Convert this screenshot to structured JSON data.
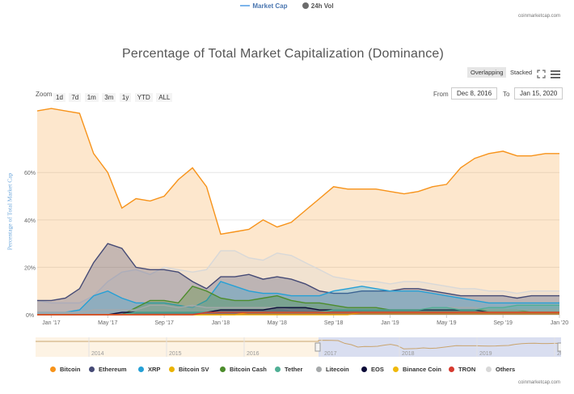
{
  "top_legend": {
    "market_cap": "Market Cap",
    "vol_24h": "24h Vol",
    "market_cap_color": "#7cb5ec",
    "vol_color": "#6b6b6b"
  },
  "credit": "coinmarketcap.com",
  "title": "Percentage of Total Market Capitalization (Dominance)",
  "modes": {
    "overlapping": "Overlapping",
    "stacked": "Stacked"
  },
  "icons": {
    "fullscreen": "fullscreen-icon",
    "menu": "menu-icon"
  },
  "zoom": {
    "label": "Zoom",
    "options": [
      "1d",
      "7d",
      "1m",
      "3m",
      "1y",
      "YTD",
      "ALL"
    ]
  },
  "range": {
    "from_label": "From",
    "from_value": "Dec 8, 2016",
    "to_label": "To",
    "to_value": "Jan 15, 2020"
  },
  "navigator": {
    "years": [
      "2014",
      "2015",
      "2016",
      "2017",
      "2018",
      "2019",
      "20"
    ]
  },
  "chart_data": {
    "type": "area",
    "ylabel": "Percentage of Total Market Cap",
    "x_ticks": [
      "Jan '17",
      "May '17",
      "Sep '17",
      "Jan '18",
      "May '18",
      "Sep '18",
      "Jan '19",
      "May '19",
      "Sep '19",
      "Jan '20"
    ],
    "y_ticks": [
      "0%",
      "20%",
      "40%",
      "60%"
    ],
    "ylim": [
      0,
      85
    ],
    "x": [
      "Dec 2016",
      "Jan 2017",
      "Feb 2017",
      "Mar 2017",
      "Apr 2017",
      "May 2017",
      "Jun 2017",
      "Jul 2017",
      "Aug 2017",
      "Sep 2017",
      "Oct 2017",
      "Nov 2017",
      "Dec 2017",
      "Jan 2018",
      "Feb 2018",
      "Mar 2018",
      "Apr 2018",
      "May 2018",
      "Jun 2018",
      "Jul 2018",
      "Aug 2018",
      "Sep 2018",
      "Oct 2018",
      "Nov 2018",
      "Dec 2018",
      "Jan 2019",
      "Feb 2019",
      "Mar 2019",
      "Apr 2019",
      "May 2019",
      "Jun 2019",
      "Jul 2019",
      "Aug 2019",
      "Sep 2019",
      "Oct 2019",
      "Nov 2019",
      "Dec 2019",
      "Jan 2020"
    ],
    "series": [
      {
        "name": "Bitcoin",
        "color": "#f7931a",
        "values": [
          86,
          87,
          86,
          85,
          68,
          60,
          45,
          49,
          48,
          50,
          57,
          62,
          54,
          34,
          35,
          36,
          40,
          37,
          39,
          44,
          49,
          54,
          53,
          53,
          53,
          52,
          51,
          52,
          54,
          55,
          62,
          66,
          68,
          69,
          67,
          67,
          68,
          68
        ]
      },
      {
        "name": "Ethereum",
        "color": "#454a75",
        "values": [
          6,
          6,
          7,
          11,
          22,
          30,
          28,
          20,
          19,
          19,
          18,
          14,
          11,
          16,
          16,
          17,
          15,
          16,
          15,
          13,
          10,
          9,
          9,
          10,
          10,
          10,
          11,
          11,
          10,
          9,
          8,
          8,
          8,
          8,
          7,
          8,
          8,
          8
        ]
      },
      {
        "name": "XRP",
        "color": "#25a0d6",
        "values": [
          1,
          1,
          1,
          2,
          8,
          10,
          7,
          5,
          5,
          5,
          4,
          3,
          6,
          14,
          12,
          10,
          9,
          9,
          8,
          8,
          8,
          10,
          11,
          12,
          11,
          10,
          10,
          10,
          9,
          8,
          7,
          6,
          5,
          5,
          5,
          5,
          5,
          5
        ]
      },
      {
        "name": "Bitcoin SV",
        "color": "#eab300",
        "values": [
          0,
          0,
          0,
          0,
          0,
          0,
          0,
          0,
          0,
          0,
          0,
          0,
          0,
          0,
          0,
          0,
          0,
          0,
          0,
          0,
          0,
          0,
          0,
          1,
          1,
          1,
          1,
          1,
          1,
          1,
          1,
          1,
          1,
          1,
          1,
          1,
          1,
          1
        ]
      },
      {
        "name": "Bitcoin Cash",
        "color": "#4c8c2b",
        "values": [
          0,
          0,
          0,
          0,
          0,
          0,
          0,
          3,
          6,
          6,
          5,
          12,
          10,
          7,
          6,
          6,
          7,
          8,
          6,
          5,
          5,
          4,
          3,
          3,
          3,
          2,
          2,
          2,
          2,
          2,
          2,
          2,
          2,
          2,
          2,
          1,
          1,
          1
        ]
      },
      {
        "name": "Tether",
        "color": "#50af95",
        "values": [
          0,
          0,
          0,
          0,
          0,
          0,
          0,
          1,
          1,
          1,
          1,
          1,
          1,
          1,
          1,
          1,
          1,
          1,
          1,
          1,
          1,
          2,
          2,
          2,
          2,
          2,
          2,
          2,
          3,
          3,
          2,
          2,
          3,
          3,
          4,
          4,
          4,
          4
        ]
      },
      {
        "name": "Litecoin",
        "color": "#a6a9aa",
        "values": [
          1,
          1,
          1,
          1,
          2,
          2,
          2,
          2,
          4,
          4,
          3,
          4,
          3,
          3,
          3,
          3,
          3,
          3,
          2,
          2,
          2,
          2,
          2,
          2,
          2,
          2,
          2,
          2,
          3,
          3,
          3,
          3,
          2,
          2,
          2,
          2,
          2,
          2
        ]
      },
      {
        "name": "EOS",
        "color": "#0b0a38",
        "values": [
          0,
          0,
          0,
          0,
          0,
          0,
          1,
          1,
          1,
          1,
          1,
          1,
          1,
          2,
          2,
          2,
          2,
          3,
          3,
          3,
          2,
          2,
          2,
          2,
          2,
          2,
          2,
          2,
          2,
          2,
          2,
          2,
          1,
          1,
          1,
          1,
          1,
          1
        ]
      },
      {
        "name": "Binance Coin",
        "color": "#f0b90b",
        "values": [
          0,
          0,
          0,
          0,
          0,
          0,
          0,
          0,
          0,
          0,
          0,
          0,
          0,
          0,
          0,
          1,
          1,
          1,
          1,
          1,
          1,
          1,
          1,
          1,
          1,
          1,
          1,
          1,
          1,
          1,
          1,
          1,
          1,
          1,
          1,
          1,
          1,
          1
        ]
      },
      {
        "name": "TRON",
        "color": "#d63a2f",
        "values": [
          0,
          0,
          0,
          0,
          0,
          0,
          0,
          0,
          0,
          0,
          0,
          0,
          1,
          1,
          1,
          1,
          1,
          1,
          1,
          1,
          1,
          1,
          1,
          1,
          1,
          1,
          1,
          1,
          1,
          1,
          1,
          1,
          1,
          1,
          1,
          1,
          1,
          1
        ]
      },
      {
        "name": "Others",
        "color": "#d8d8d8",
        "values": [
          6,
          5,
          5,
          5,
          8,
          14,
          18,
          19,
          17,
          20,
          19,
          18,
          19,
          27,
          27,
          24,
          23,
          26,
          25,
          22,
          19,
          16,
          15,
          14,
          14,
          13,
          14,
          14,
          13,
          12,
          11,
          11,
          10,
          10,
          9,
          10,
          10,
          10
        ]
      }
    ]
  }
}
